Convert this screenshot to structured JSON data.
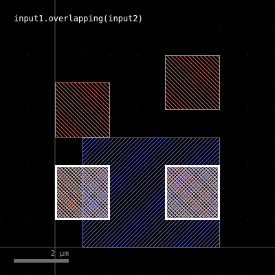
{
  "title": "input1.overlapping(input2)",
  "scale_bar": {
    "label": "2 µm"
  },
  "colors": {
    "background": "#000000",
    "grid_dot": "#4a4a4a",
    "axis": "#5a5a5a",
    "input1": "#f08070",
    "input2": "#6f6fe0",
    "result": "#ffffff",
    "scale_bar": "#6e6e6e"
  },
  "chart_data": {
    "type": "layout",
    "units": "µm",
    "input1_shapes": [
      {
        "name": "input1-rect-top-right",
        "x0": 4,
        "y0": 5,
        "x1": 6,
        "y1": 7
      },
      {
        "name": "input1-rect-upper-left",
        "x0": 0,
        "y0": 4,
        "x1": 2,
        "y1": 6
      },
      {
        "name": "input1-rect-mid-left",
        "x0": 0,
        "y0": 1,
        "x1": 2,
        "y1": 3
      },
      {
        "name": "input1-rect-mid-right",
        "x0": 4,
        "y0": 1,
        "x1": 6,
        "y1": 3
      }
    ],
    "input2_shapes": [
      {
        "name": "input2-rect",
        "x0": 1,
        "y0": 0,
        "x1": 6,
        "y1": 4
      }
    ],
    "result_shapes": [
      {
        "name": "result-rect-left",
        "x0": 0,
        "y0": 1,
        "x1": 2,
        "y1": 3
      },
      {
        "name": "result-rect-right",
        "x0": 4,
        "y0": 1,
        "x1": 6,
        "y1": 3
      }
    ]
  }
}
